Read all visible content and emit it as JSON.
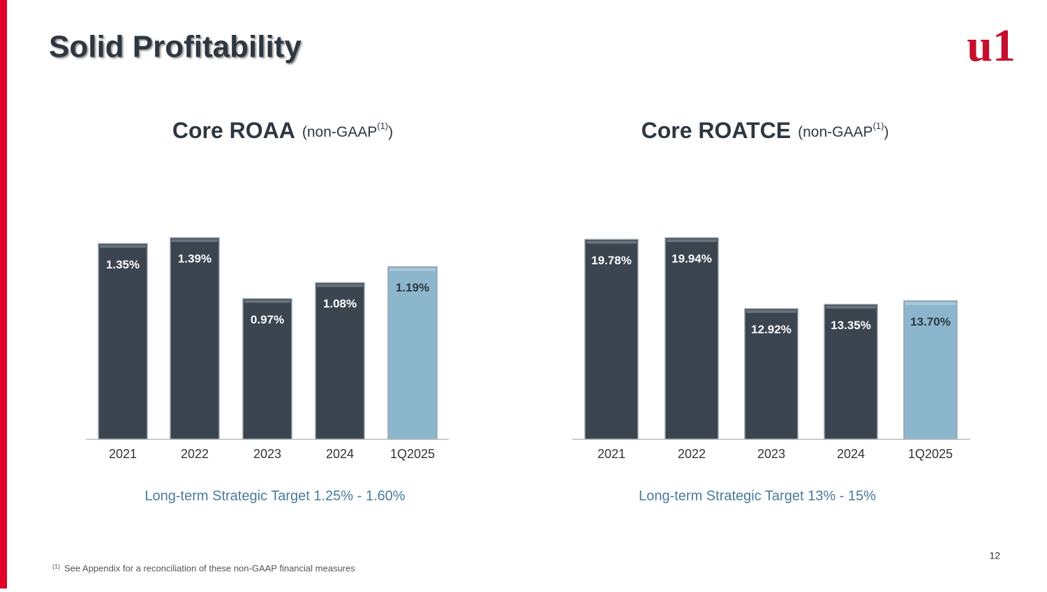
{
  "title": "Solid Profitability",
  "logo": "u1",
  "page_number": "12",
  "footnote": {
    "marker": "(1)",
    "text": "See Appendix for a reconciliation of these non-GAAP financial measures"
  },
  "chart_data": [
    {
      "type": "bar",
      "title": "Core ROAA",
      "subtitle_parts": [
        "(non-GAAP",
        "(1)",
        ")"
      ],
      "categories": [
        "2021",
        "2022",
        "2023",
        "2024",
        "1Q2025"
      ],
      "values": [
        1.35,
        1.39,
        0.97,
        1.08,
        1.19
      ],
      "value_labels": [
        "1.35%",
        "1.39%",
        "0.97%",
        "1.08%",
        "1.19%"
      ],
      "colors": [
        "#3a4550",
        "#3a4550",
        "#3a4550",
        "#3a4550",
        "#8cb6cc"
      ],
      "note": "Long-term Strategic Target 1.25% - 1.60%"
    },
    {
      "type": "bar",
      "title": "Core ROATCE",
      "subtitle_parts": [
        "(non-GAAP",
        "(1)",
        ")"
      ],
      "categories": [
        "2021",
        "2022",
        "2023",
        "2024",
        "1Q2025"
      ],
      "values": [
        19.78,
        19.94,
        12.92,
        13.35,
        13.7
      ],
      "value_labels": [
        "19.78%",
        "19.94%",
        "12.92%",
        "13.35%",
        "13.70%"
      ],
      "colors": [
        "#3a4550",
        "#3a4550",
        "#3a4550",
        "#3a4550",
        "#8cb6cc"
      ],
      "note": "Long-term Strategic Target 13% - 15%"
    }
  ]
}
